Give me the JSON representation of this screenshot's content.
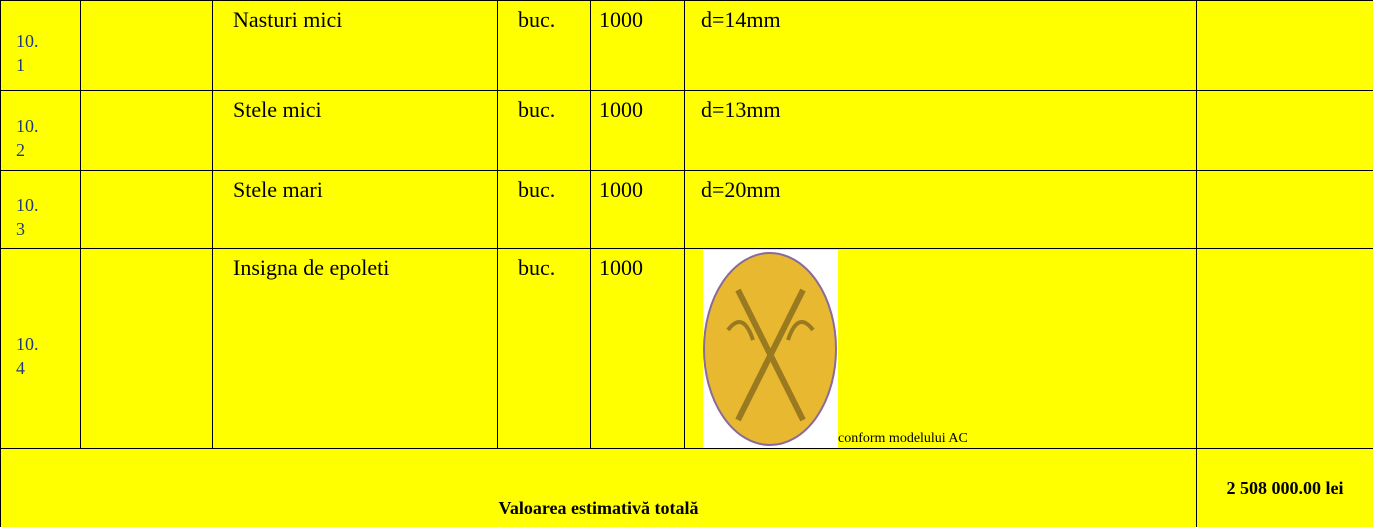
{
  "table": {
    "rows": [
      {
        "nr": "10.1",
        "name": "Nasturi mici",
        "unit": "buc.",
        "qty": 1000,
        "spec": "d=14mm"
      },
      {
        "nr": "10.2",
        "name": "Stele mici",
        "unit": "buc.",
        "qty": 1000,
        "spec": "d=13mm"
      },
      {
        "nr": "10.3",
        "name": "Stele mari",
        "unit": "buc.",
        "qty": 1000,
        "spec": "d=20mm"
      },
      {
        "nr": "10.4",
        "name": "Insigna de epoleti",
        "unit": "buc.",
        "qty": 1000,
        "spec": "conform modelului AC"
      }
    ],
    "total_label": "Valoarea estimativă totală",
    "total_value": "2 508 000.00 lei"
  }
}
